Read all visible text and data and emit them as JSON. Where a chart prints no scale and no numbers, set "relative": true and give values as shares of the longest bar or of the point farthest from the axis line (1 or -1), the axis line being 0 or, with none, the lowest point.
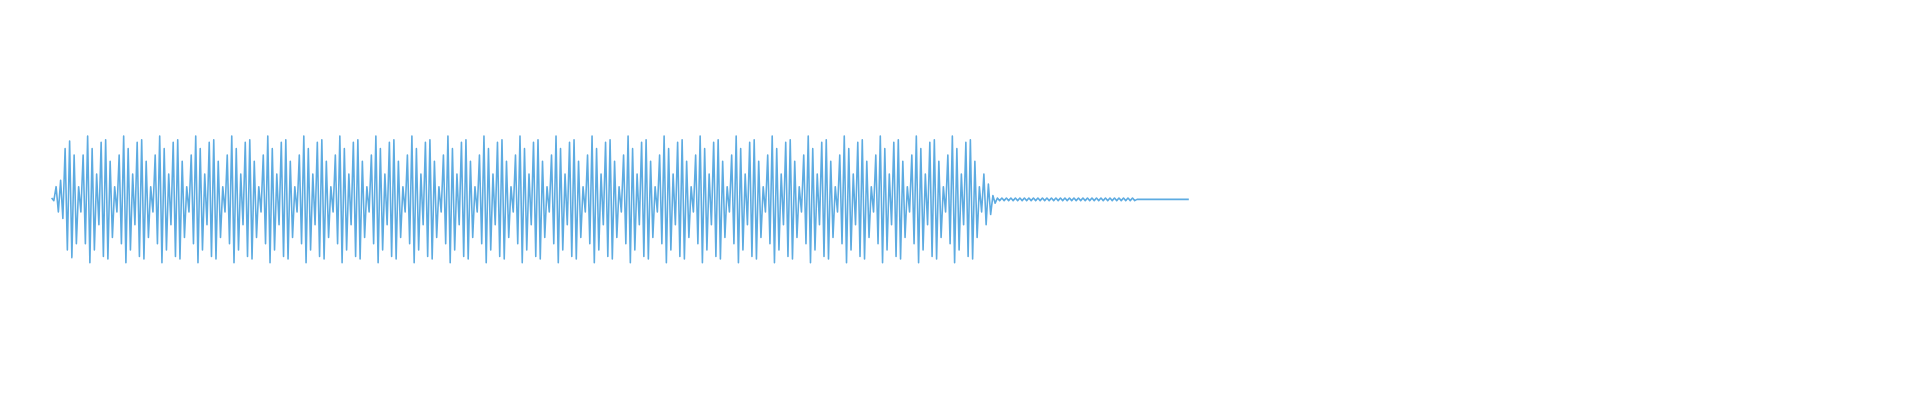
{
  "chart_data": {
    "type": "line",
    "relative": true,
    "categories": [
      null,
      null,
      null,
      null,
      null,
      null,
      null,
      null,
      null,
      null,
      null,
      null,
      null,
      null,
      null,
      null,
      null,
      null,
      null,
      null,
      null,
      null,
      null,
      null,
      null,
      null,
      null,
      null,
      null,
      null,
      null,
      null,
      null,
      null,
      null,
      null,
      null,
      null,
      null,
      null,
      null,
      null,
      null,
      null,
      null,
      null,
      null,
      null,
      null,
      null,
      null,
      null,
      null,
      null,
      null,
      null,
      null,
      null,
      null,
      null,
      null,
      null,
      null,
      null,
      null,
      null,
      null,
      null,
      null,
      null,
      null,
      null,
      null,
      null,
      null,
      null,
      null,
      null,
      null,
      null,
      null,
      null,
      null,
      null,
      null,
      null,
      null,
      null,
      null,
      null,
      null,
      null,
      null,
      null,
      null,
      null,
      null,
      null,
      null,
      null,
      null,
      null,
      null,
      null,
      null,
      null,
      null,
      null,
      null,
      null,
      null,
      null,
      null,
      null,
      null,
      null,
      null,
      null,
      null,
      null,
      null,
      null,
      null,
      null,
      null,
      null,
      null,
      null,
      null,
      null,
      null,
      null,
      null,
      null,
      null,
      null,
      null,
      null,
      null,
      null,
      null,
      null,
      null,
      null,
      null,
      null,
      null,
      null,
      null,
      null,
      null,
      null,
      null,
      null,
      null,
      null,
      null,
      null,
      null,
      null,
      null,
      null,
      null,
      null,
      null,
      null,
      null,
      null,
      null,
      null,
      null,
      null,
      null,
      null,
      null,
      null,
      null,
      null,
      null,
      null,
      null,
      null,
      null,
      null,
      null,
      null,
      null,
      null,
      null,
      null,
      null,
      null,
      null,
      null,
      null,
      null,
      null,
      null,
      null,
      null,
      null,
      null,
      null,
      null,
      null,
      null,
      null,
      null,
      null,
      null,
      null,
      null,
      null,
      null,
      null,
      null,
      null,
      null,
      null,
      null,
      null,
      null,
      null,
      null,
      null,
      null,
      null,
      null,
      null,
      null,
      null,
      null,
      null,
      null,
      null,
      null,
      null,
      null,
      null,
      null,
      null,
      null,
      null,
      null,
      null,
      null,
      null,
      null,
      null,
      null,
      null,
      null,
      null,
      null,
      null,
      null,
      null,
      null,
      null,
      null,
      null,
      null,
      null,
      null,
      null,
      null,
      null,
      null,
      null,
      null,
      null,
      null,
      null,
      null,
      null,
      null,
      null,
      null,
      null,
      null,
      null,
      null,
      null,
      null,
      null,
      null,
      null,
      null,
      null,
      null,
      null,
      null,
      null,
      null,
      null,
      null,
      null,
      null,
      null,
      null,
      null,
      null,
      null,
      null,
      null,
      null,
      null,
      null,
      null,
      null,
      null,
      null,
      null,
      null,
      null,
      null,
      null,
      null,
      null,
      null,
      null,
      null,
      null,
      null,
      null,
      null,
      null,
      null,
      null,
      null,
      null,
      null,
      null,
      null,
      null,
      null,
      null,
      null,
      null,
      null,
      null,
      null,
      null,
      null,
      null,
      null,
      null,
      null,
      null,
      null,
      null,
      null,
      null,
      null,
      null,
      null,
      null,
      null,
      null,
      null,
      null,
      null,
      null,
      null,
      null,
      null,
      null,
      null,
      null,
      null,
      null,
      null,
      null,
      null,
      null,
      null,
      null,
      null,
      null,
      null,
      null,
      null,
      null,
      null,
      null,
      null,
      null,
      null,
      null,
      null,
      null,
      null,
      null,
      null,
      null,
      null,
      null,
      null,
      null,
      null,
      null,
      null,
      null,
      null,
      null,
      null,
      null,
      null,
      null,
      null,
      null,
      null,
      null,
      null,
      null,
      null,
      null,
      null,
      null,
      null,
      null,
      null,
      null,
      null,
      null,
      null,
      null,
      null,
      null,
      null,
      null,
      null,
      null,
      null,
      null,
      null,
      null,
      null,
      null,
      null,
      null,
      null,
      null,
      null,
      null,
      null,
      null,
      null,
      null,
      null,
      null,
      null,
      null,
      null,
      null,
      null,
      null,
      null,
      null,
      null,
      null,
      null,
      null,
      null,
      null,
      null,
      null,
      null,
      null,
      null,
      null,
      null,
      null,
      null,
      null,
      null,
      null,
      null,
      null,
      null,
      null,
      null,
      null,
      null,
      null,
      null,
      null,
      null,
      null,
      null,
      null,
      null,
      null,
      null,
      null,
      null,
      null,
      null,
      null,
      null,
      null,
      null,
      null,
      null,
      null,
      null
    ],
    "series": [
      {
        "color": "#5dabe1",
        "values": [
          0.51,
          0.49,
          0.6,
          0.4,
          0.65,
          0.35,
          0.9,
          0.1,
          0.96,
          0.04,
          0.85,
          0.15,
          0.6,
          0.4,
          0.85,
          0.15,
          1,
          0,
          0.9,
          0.1,
          0.7,
          0.3,
          0.95,
          0.05,
          0.97,
          0.03,
          0.8,
          0.2,
          0.6,
          0.4,
          0.85,
          0.15,
          1,
          0,
          0.9,
          0.1,
          0.7,
          0.3,
          0.95,
          0.05,
          0.97,
          0.03,
          0.8,
          0.2,
          0.6,
          0.4,
          0.85,
          0.15,
          1,
          0,
          0.9,
          0.1,
          0.7,
          0.3,
          0.95,
          0.05,
          0.97,
          0.03,
          0.8,
          0.2,
          0.6,
          0.4,
          0.85,
          0.15,
          1,
          0,
          0.9,
          0.1,
          0.7,
          0.3,
          0.95,
          0.05,
          0.97,
          0.03,
          0.8,
          0.2,
          0.6,
          0.4,
          0.85,
          0.15,
          1,
          0,
          0.9,
          0.1,
          0.7,
          0.3,
          0.95,
          0.05,
          0.97,
          0.03,
          0.8,
          0.2,
          0.6,
          0.4,
          0.85,
          0.15,
          1,
          0,
          0.9,
          0.1,
          0.7,
          0.3,
          0.95,
          0.05,
          0.97,
          0.03,
          0.8,
          0.2,
          0.6,
          0.4,
          0.85,
          0.15,
          1,
          0,
          0.9,
          0.1,
          0.7,
          0.3,
          0.95,
          0.05,
          0.97,
          0.03,
          0.8,
          0.2,
          0.6,
          0.4,
          0.85,
          0.15,
          1,
          0,
          0.9,
          0.1,
          0.7,
          0.3,
          0.95,
          0.05,
          0.97,
          0.03,
          0.8,
          0.2,
          0.6,
          0.4,
          0.85,
          0.15,
          1,
          0,
          0.9,
          0.1,
          0.7,
          0.3,
          0.95,
          0.05,
          0.97,
          0.03,
          0.8,
          0.2,
          0.6,
          0.4,
          0.85,
          0.15,
          1,
          0,
          0.9,
          0.1,
          0.7,
          0.3,
          0.95,
          0.05,
          0.97,
          0.03,
          0.8,
          0.2,
          0.6,
          0.4,
          0.85,
          0.15,
          1,
          0,
          0.9,
          0.1,
          0.7,
          0.3,
          0.95,
          0.05,
          0.97,
          0.03,
          0.8,
          0.2,
          0.6,
          0.4,
          0.85,
          0.15,
          1,
          0,
          0.9,
          0.1,
          0.7,
          0.3,
          0.95,
          0.05,
          0.97,
          0.03,
          0.8,
          0.2,
          0.6,
          0.4,
          0.85,
          0.15,
          1,
          0,
          0.9,
          0.1,
          0.7,
          0.3,
          0.95,
          0.05,
          0.97,
          0.03,
          0.8,
          0.2,
          0.6,
          0.4,
          0.85,
          0.15,
          1,
          0,
          0.9,
          0.1,
          0.7,
          0.3,
          0.95,
          0.05,
          0.97,
          0.03,
          0.8,
          0.2,
          0.6,
          0.4,
          0.85,
          0.15,
          1,
          0,
          0.9,
          0.1,
          0.7,
          0.3,
          0.95,
          0.05,
          0.97,
          0.03,
          0.8,
          0.2,
          0.6,
          0.4,
          0.85,
          0.15,
          1,
          0,
          0.9,
          0.1,
          0.7,
          0.3,
          0.95,
          0.05,
          0.97,
          0.03,
          0.8,
          0.2,
          0.6,
          0.4,
          0.85,
          0.15,
          1,
          0,
          0.9,
          0.1,
          0.7,
          0.3,
          0.95,
          0.05,
          0.97,
          0.03,
          0.8,
          0.2,
          0.6,
          0.4,
          0.85,
          0.15,
          1,
          0,
          0.9,
          0.1,
          0.7,
          0.3,
          0.95,
          0.05,
          0.97,
          0.03,
          0.8,
          0.2,
          0.6,
          0.4,
          0.85,
          0.15,
          1,
          0,
          0.9,
          0.1,
          0.7,
          0.3,
          0.95,
          0.05,
          0.97,
          0.03,
          0.8,
          0.2,
          0.6,
          0.4,
          0.85,
          0.15,
          1,
          0,
          0.9,
          0.1,
          0.7,
          0.3,
          0.95,
          0.05,
          0.97,
          0.03,
          0.8,
          0.2,
          0.6,
          0.4,
          0.85,
          0.15,
          1,
          0,
          0.9,
          0.1,
          0.7,
          0.3,
          0.95,
          0.05,
          0.97,
          0.03,
          0.8,
          0.2,
          0.6,
          0.4,
          0.85,
          0.15,
          1,
          0,
          0.9,
          0.1,
          0.7,
          0.3,
          0.95,
          0.05,
          0.97,
          0.03,
          0.8,
          0.2,
          0.6,
          0.4,
          0.85,
          0.15,
          1,
          0,
          0.9,
          0.1,
          0.7,
          0.3,
          0.95,
          0.05,
          0.97,
          0.03,
          0.8,
          0.2,
          0.6,
          0.4,
          0.85,
          0.15,
          1,
          0,
          0.9,
          0.1,
          0.7,
          0.3,
          0.95,
          0.05,
          0.97,
          0.03,
          0.8,
          0.2,
          0.6,
          0.4,
          0.85,
          0.15,
          1,
          0,
          0.9,
          0.1,
          0.7,
          0.3,
          0.95,
          0.05,
          0.97,
          0.03,
          0.8,
          0.2,
          0.6,
          0.4,
          0.7,
          0.3,
          0.62,
          0.38,
          0.53,
          0.47,
          0.51,
          0.49,
          0.51,
          0.49,
          0.51,
          0.49,
          0.51,
          0.49,
          0.51,
          0.49,
          0.51,
          0.49,
          0.51,
          0.49,
          0.51,
          0.49,
          0.51,
          0.49,
          0.51,
          0.49,
          0.51,
          0.49,
          0.51,
          0.49,
          0.51,
          0.49,
          0.51,
          0.49,
          0.51,
          0.49,
          0.51,
          0.49,
          0.51,
          0.49,
          0.51,
          0.49,
          0.51,
          0.49,
          0.51,
          0.49,
          0.51,
          0.49,
          0.51,
          0.49,
          0.51,
          0.49,
          0.51,
          0.49,
          0.51,
          0.49,
          0.51,
          0.49,
          0.51,
          0.49,
          0.51,
          0.49,
          0.51,
          0.49,
          0.51,
          0.49,
          0.51,
          0.49,
          0.5,
          0.5,
          0.5,
          0.5,
          0.5,
          0.5,
          0.5,
          0.5,
          0.5,
          0.5,
          0.5,
          0.5,
          0.5,
          0.5,
          0.5,
          0.5,
          0.5,
          0.5,
          0.5,
          0.5,
          0.5,
          0.5,
          0.5,
          0.5
        ]
      }
    ]
  }
}
